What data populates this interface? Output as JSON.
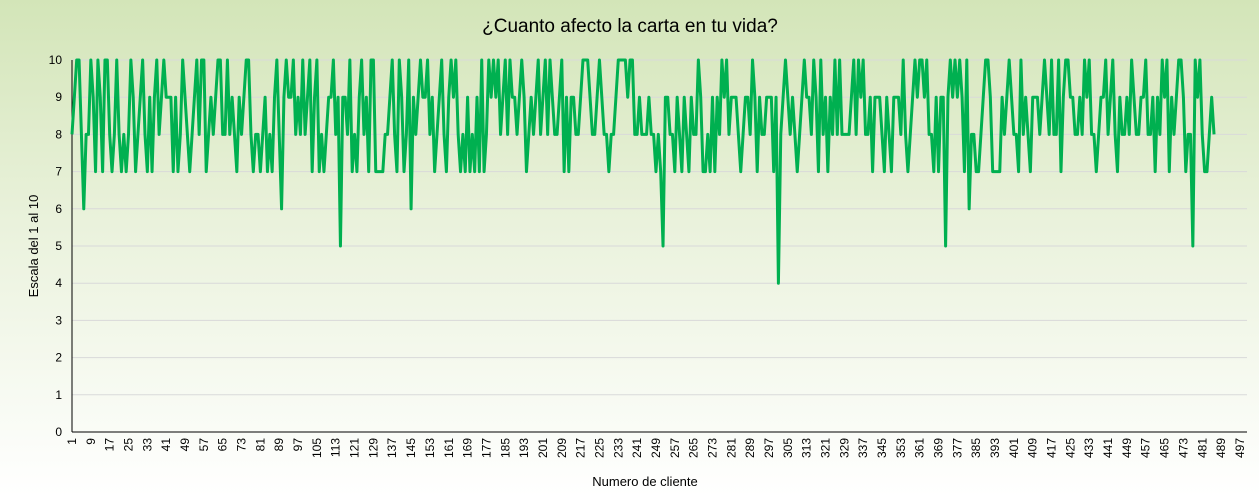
{
  "chart_data": {
    "type": "line",
    "title": "¿Cuanto afecto la carta en tu vida?",
    "xlabel": "Numero de cliente",
    "ylabel": "Escala del 1 al 10",
    "ylim": [
      0,
      10
    ],
    "yticks": [
      "0",
      "1",
      "2",
      "3",
      "4",
      "5",
      "6",
      "7",
      "8",
      "9",
      "10"
    ],
    "grid": true,
    "legend": "none",
    "x_start": 1,
    "x_end": 500,
    "x_tick_labels": [
      "1",
      "9",
      "17",
      "25",
      "33",
      "41",
      "49",
      "57",
      "65",
      "73",
      "81",
      "89",
      "97",
      "105",
      "113",
      "121",
      "129",
      "137",
      "145",
      "153",
      "161",
      "169",
      "177",
      "185",
      "193",
      "201",
      "209",
      "217",
      "225",
      "233",
      "241",
      "249",
      "257",
      "265",
      "273",
      "281",
      "289",
      "297",
      "305",
      "313",
      "321",
      "329",
      "337",
      "345",
      "353",
      "361",
      "369",
      "377",
      "385",
      "393",
      "401",
      "409",
      "417",
      "425",
      "433",
      "441",
      "449",
      "457",
      "465",
      "473",
      "481",
      "489",
      "497"
    ],
    "series": [
      {
        "color": "#00b050",
        "values": [
          8,
          9,
          10,
          10,
          8,
          6,
          8,
          8,
          10,
          9,
          7,
          10,
          9,
          7,
          10,
          10,
          8,
          7,
          8,
          10,
          8,
          7,
          8,
          7,
          8,
          10,
          9,
          7,
          8,
          9,
          10,
          8,
          7,
          9,
          7,
          9,
          10,
          8,
          9,
          10,
          9,
          9,
          9,
          7,
          9,
          7,
          8,
          10,
          9,
          8,
          7,
          8,
          9,
          10,
          8,
          10,
          10,
          7,
          8,
          9,
          8,
          9,
          10,
          10,
          8,
          8,
          10,
          8,
          9,
          8,
          7,
          9,
          8,
          9,
          10,
          10,
          8,
          7,
          8,
          8,
          7,
          8,
          9,
          7,
          8,
          7,
          9,
          10,
          8,
          6,
          9,
          10,
          9,
          9,
          10,
          8,
          9,
          8,
          10,
          8,
          9,
          10,
          7,
          9,
          10,
          7,
          8,
          7,
          8,
          9,
          9,
          10,
          8,
          9,
          5,
          9,
          9,
          8,
          10,
          7,
          8,
          7,
          9,
          10,
          8,
          9,
          7,
          10,
          10,
          7,
          7,
          7,
          7,
          8,
          8,
          9,
          10,
          8,
          7,
          10,
          9,
          7,
          8,
          10,
          6,
          9,
          8,
          9,
          10,
          9,
          9,
          10,
          8,
          9,
          7,
          8,
          9,
          10,
          8,
          7,
          9,
          10,
          9,
          10,
          8,
          7,
          8,
          7,
          9,
          7,
          8,
          7,
          9,
          7,
          10,
          7,
          8,
          10,
          9,
          10,
          9,
          10,
          8,
          9,
          10,
          8,
          10,
          9,
          9,
          8,
          9,
          10,
          9,
          7,
          8,
          9,
          8,
          9,
          10,
          8,
          9,
          10,
          8,
          10,
          9,
          8,
          8,
          9,
          10,
          7,
          9,
          7,
          9,
          9,
          8,
          8,
          9,
          10,
          10,
          10,
          9,
          8,
          8,
          9,
          10,
          9,
          8,
          8,
          7,
          8,
          8,
          9,
          10,
          10,
          10,
          10,
          9,
          10,
          10,
          8,
          8,
          9,
          8,
          8,
          8,
          9,
          8,
          8,
          7,
          8,
          7,
          5,
          9,
          9,
          8,
          8,
          7,
          9,
          8,
          7,
          9,
          8,
          7,
          9,
          8,
          8,
          10,
          9,
          7,
          7,
          8,
          7,
          9,
          7,
          9,
          8,
          10,
          9,
          10,
          8,
          9,
          9,
          9,
          8,
          7,
          8,
          9,
          9,
          8,
          10,
          9,
          7,
          9,
          8,
          8,
          9,
          9,
          9,
          7,
          9,
          4,
          8,
          9,
          10,
          9,
          8,
          9,
          8,
          7,
          8,
          9,
          10,
          9,
          9,
          8,
          10,
          9,
          7,
          10,
          8,
          9,
          7,
          9,
          8,
          10,
          8,
          10,
          8,
          8,
          8,
          8,
          9,
          10,
          8,
          10,
          9,
          10,
          8,
          8,
          9,
          7,
          9,
          9,
          9,
          8,
          7,
          9,
          8,
          7,
          9,
          9,
          9,
          8,
          10,
          8,
          7,
          8,
          9,
          10,
          9,
          10,
          10,
          9,
          10,
          8,
          8,
          7,
          9,
          7,
          9,
          9,
          5,
          9,
          10,
          9,
          10,
          9,
          10,
          9,
          7,
          10,
          6,
          8,
          8,
          7,
          7,
          8,
          9,
          10,
          10,
          9,
          7,
          7,
          7,
          7,
          9,
          8,
          9,
          10,
          9,
          8,
          8,
          7,
          10,
          8,
          9,
          8,
          7,
          9,
          9,
          9,
          8,
          9,
          10,
          9,
          8,
          10,
          8,
          8,
          10,
          7,
          9,
          10,
          10,
          9,
          9,
          8,
          8,
          9,
          8,
          10,
          9,
          10,
          8,
          8,
          7,
          8,
          9,
          9,
          10,
          8,
          9,
          10,
          8,
          7,
          9,
          8,
          8,
          9,
          8,
          10,
          9,
          8,
          8,
          9,
          9,
          10,
          8,
          8,
          9,
          7,
          9,
          8,
          10,
          9,
          10,
          7,
          9,
          8,
          9,
          10,
          10,
          9,
          7,
          8,
          8,
          5,
          10,
          9,
          10,
          8,
          7,
          7,
          8,
          9,
          8
        ]
      }
    ]
  }
}
